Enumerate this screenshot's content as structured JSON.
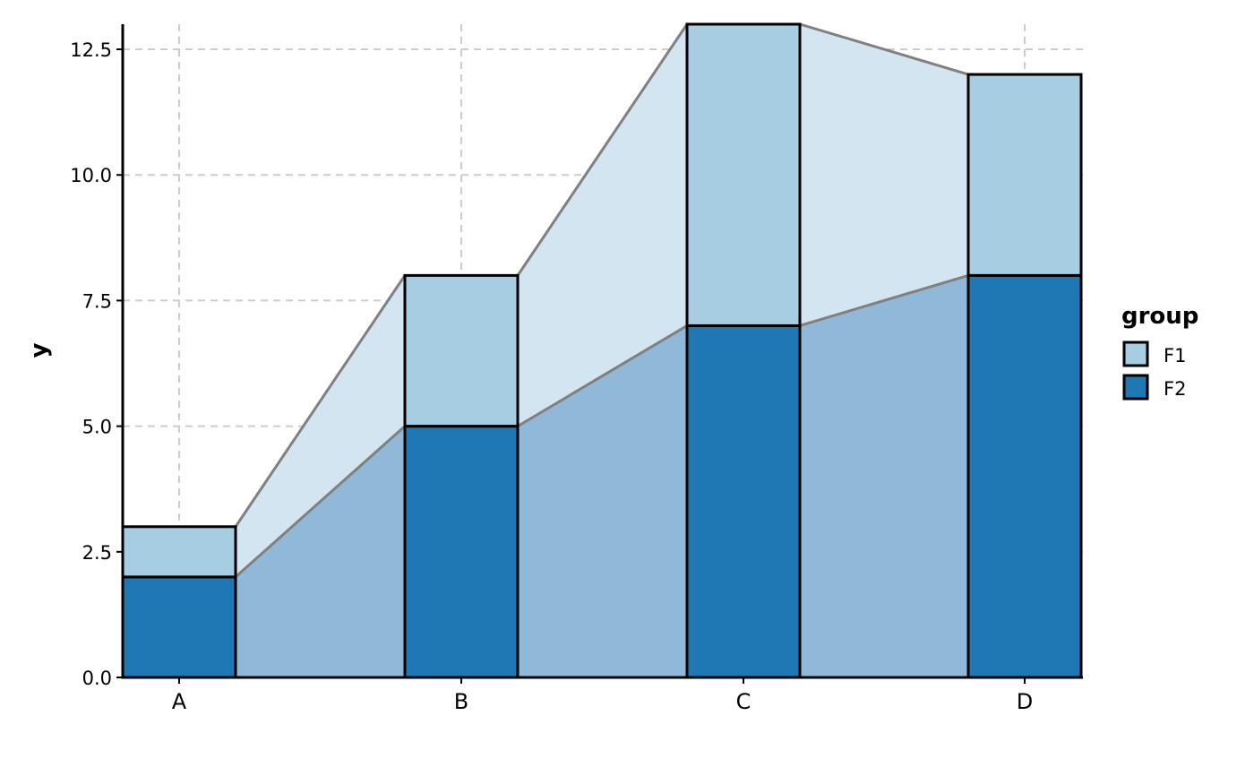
{
  "chart_data": {
    "type": "bar",
    "stacked": true,
    "alluvial_connectors": true,
    "categories": [
      "A",
      "B",
      "C",
      "D"
    ],
    "series": [
      {
        "name": "F2",
        "values": [
          2,
          5,
          7,
          8
        ],
        "color": "#1f78b4",
        "band_color": "#8fb8d9"
      },
      {
        "name": "F1",
        "values": [
          1,
          3,
          6,
          4
        ],
        "color": "#a6cde2",
        "band_color": "#d2e5f1"
      }
    ],
    "xlabel": "",
    "ylabel": "y",
    "ylim": [
      0,
      13
    ],
    "yticks": [
      0.0,
      2.5,
      5.0,
      7.5,
      10.0,
      12.5
    ],
    "ytick_labels": [
      "0.0",
      "2.5",
      "5.0",
      "7.5",
      "10.0",
      "12.5"
    ],
    "grid": true,
    "legend": {
      "title": "group",
      "placement": "right",
      "entries": [
        "F1",
        "F2"
      ]
    }
  }
}
